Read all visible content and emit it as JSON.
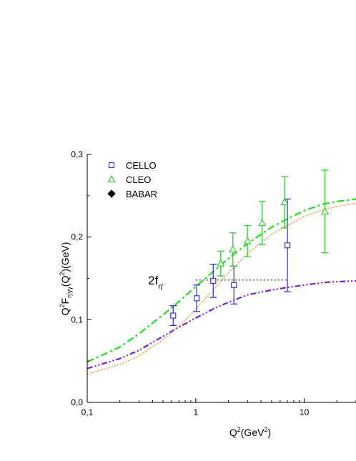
{
  "chart_data": {
    "type": "scatter",
    "x_scale": "log",
    "xlim": [
      0.1,
      30
    ],
    "ylim": [
      0.0,
      0.3
    ],
    "x_ticks": [
      {
        "value": 0.1,
        "label": "0,1"
      },
      {
        "value": 1,
        "label": "1"
      },
      {
        "value": 10,
        "label": "10"
      }
    ],
    "y_ticks": [
      {
        "value": 0.0,
        "label": "0,0"
      },
      {
        "value": 0.1,
        "label": "0,1"
      },
      {
        "value": 0.2,
        "label": "0,2"
      },
      {
        "value": 0.3,
        "label": "0,3"
      }
    ],
    "xlabel": {
      "main": "Q",
      "sup": "2",
      "rest": "(GeV",
      "sup2": "2",
      "end": ")"
    },
    "ylabel": {
      "main": "Q",
      "sup": "2",
      "f": "F",
      "sub": "η'γγ",
      "rest": "(Q",
      "sup2": "2",
      "end": ")(GeV)"
    },
    "legend": [
      {
        "name": "CELLO",
        "marker": "square",
        "color": "#3a3ad0"
      },
      {
        "name": "CLEO",
        "marker": "triangle",
        "color": "#33cc33"
      },
      {
        "name": "BABAR",
        "marker": "diamond",
        "color": "#000000"
      }
    ],
    "annotation": {
      "main": "2f",
      "sub": "η'",
      "y": 0.148,
      "x_from": 1.0,
      "x_to": 7.0
    },
    "series": [
      {
        "name": "CELLO",
        "marker": "square",
        "color": "#3a3ad0",
        "points": [
          {
            "x": 0.62,
            "y": 0.105,
            "err": 0.012
          },
          {
            "x": 1.02,
            "y": 0.126,
            "err": 0.016
          },
          {
            "x": 1.45,
            "y": 0.147,
            "err": 0.02
          },
          {
            "x": 2.25,
            "y": 0.142,
            "err": 0.023
          },
          {
            "x": 7.0,
            "y": 0.19,
            "err": 0.056
          }
        ]
      },
      {
        "name": "CLEO",
        "marker": "triangle",
        "color": "#33cc33",
        "points": [
          {
            "x": 1.7,
            "y": 0.168,
            "err": 0.015
          },
          {
            "x": 2.2,
            "y": 0.185,
            "err": 0.02
          },
          {
            "x": 3.0,
            "y": 0.195,
            "err": 0.019
          },
          {
            "x": 4.1,
            "y": 0.217,
            "err": 0.026
          },
          {
            "x": 6.6,
            "y": 0.242,
            "err": 0.031
          },
          {
            "x": 15.5,
            "y": 0.231,
            "err": 0.05
          }
        ]
      }
    ],
    "curves": [
      {
        "style": "dash-dot",
        "color": "#22dd22",
        "points": [
          [
            0.1,
            0.049
          ],
          [
            0.2,
            0.067
          ],
          [
            0.3,
            0.083
          ],
          [
            0.5,
            0.106
          ],
          [
            0.7,
            0.122
          ],
          [
            1.0,
            0.14
          ],
          [
            1.5,
            0.16
          ],
          [
            2.0,
            0.174
          ],
          [
            3.0,
            0.192
          ],
          [
            5.0,
            0.212
          ],
          [
            7.0,
            0.222
          ],
          [
            10,
            0.232
          ],
          [
            15,
            0.24
          ],
          [
            20,
            0.243
          ],
          [
            30,
            0.246
          ]
        ]
      },
      {
        "style": "dash-dot-dot",
        "color": "#7722dd",
        "points": [
          [
            0.1,
            0.041
          ],
          [
            0.2,
            0.053
          ],
          [
            0.3,
            0.063
          ],
          [
            0.5,
            0.08
          ],
          [
            0.7,
            0.091
          ],
          [
            1.0,
            0.102
          ],
          [
            1.5,
            0.114
          ],
          [
            2.0,
            0.121
          ],
          [
            3.0,
            0.13
          ],
          [
            5.0,
            0.136
          ],
          [
            7.0,
            0.139
          ],
          [
            10,
            0.142
          ],
          [
            15,
            0.145
          ],
          [
            20,
            0.146
          ],
          [
            30,
            0.147
          ]
        ]
      },
      {
        "style": "dotted",
        "color": "#ff8822",
        "points": [
          [
            0.1,
            0.034
          ],
          [
            0.2,
            0.046
          ],
          [
            0.3,
            0.056
          ],
          [
            0.5,
            0.076
          ],
          [
            0.7,
            0.092
          ],
          [
            1.0,
            0.113
          ],
          [
            1.5,
            0.138
          ],
          [
            2.0,
            0.157
          ],
          [
            3.0,
            0.18
          ],
          [
            5.0,
            0.203
          ],
          [
            7.0,
            0.214
          ],
          [
            10,
            0.225
          ],
          [
            15,
            0.233
          ],
          [
            20,
            0.237
          ],
          [
            30,
            0.241
          ]
        ]
      }
    ]
  }
}
